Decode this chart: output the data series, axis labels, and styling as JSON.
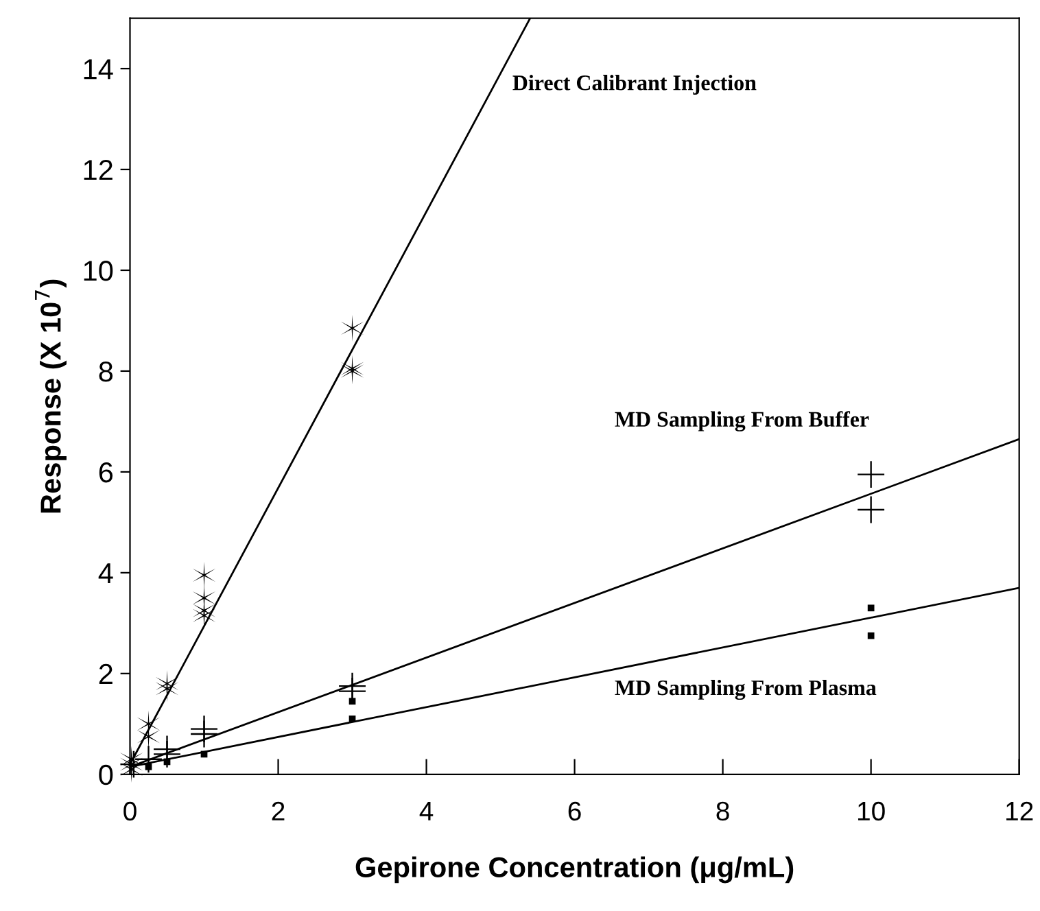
{
  "chart_data": {
    "type": "scatter",
    "xlabel": "Gepirone Concentration (μg/mL)",
    "ylabel": "Response (X 10$^{7}$)",
    "xlim": [
      0,
      12
    ],
    "ylim": [
      0,
      15
    ],
    "xticks": [
      0,
      2,
      4,
      6,
      8,
      10,
      12
    ],
    "yticks": [
      0,
      2,
      4,
      6,
      8,
      10,
      12,
      14
    ],
    "grid": false,
    "legend": false,
    "series": [
      {
        "color": "#000000",
        "x": [
          0.02,
          0.02,
          0.02,
          0.25,
          0.25,
          0.5,
          0.5,
          1,
          1,
          1,
          1,
          3,
          3,
          3
        ],
        "values": [
          0.1,
          0.2,
          0.3,
          1.0,
          0.75,
          1.8,
          1.7,
          3.95,
          3.5,
          3.25,
          3.15,
          8.85,
          8.05,
          8.0
        ]
      },
      {
        "marker": "cross",
        "color": "#000000",
        "x": [
          0.05,
          0.25,
          0.5,
          0.5,
          1,
          1,
          3,
          3,
          10,
          10
        ],
        "values": [
          0.2,
          0.3,
          0.5,
          0.4,
          0.9,
          0.8,
          1.75,
          1.65,
          5.95,
          5.25
        ]
      },
      {
        "marker": "square",
        "color": "#000000",
        "x": [
          0.25,
          0.5,
          1,
          3,
          3,
          10,
          10
        ],
        "values": [
          0.15,
          0.25,
          0.4,
          1.45,
          1.1,
          3.3,
          2.75
        ]
      },
      {
        "type": "line",
        "marker": "none",
        "color": "#000000",
        "x": [
          0,
          5.4
        ],
        "values": [
          0.2,
          15
        ]
      },
      {
        "type": "line",
        "marker": "none",
        "color": "#000000",
        "x": [
          0,
          12
        ],
        "values": [
          0.15,
          6.65
        ]
      },
      {
        "type": "line",
        "marker": "none",
        "color": "#000000",
        "x": [
          0,
          12
        ],
        "values": [
          0.15,
          3.7
        ]
      }
    ],
    "annotations": [
      "Direct Calibrant Injection",
      "MD Sampling From Buffer",
      "MD Sampling From Plasma"
    ]
  }
}
